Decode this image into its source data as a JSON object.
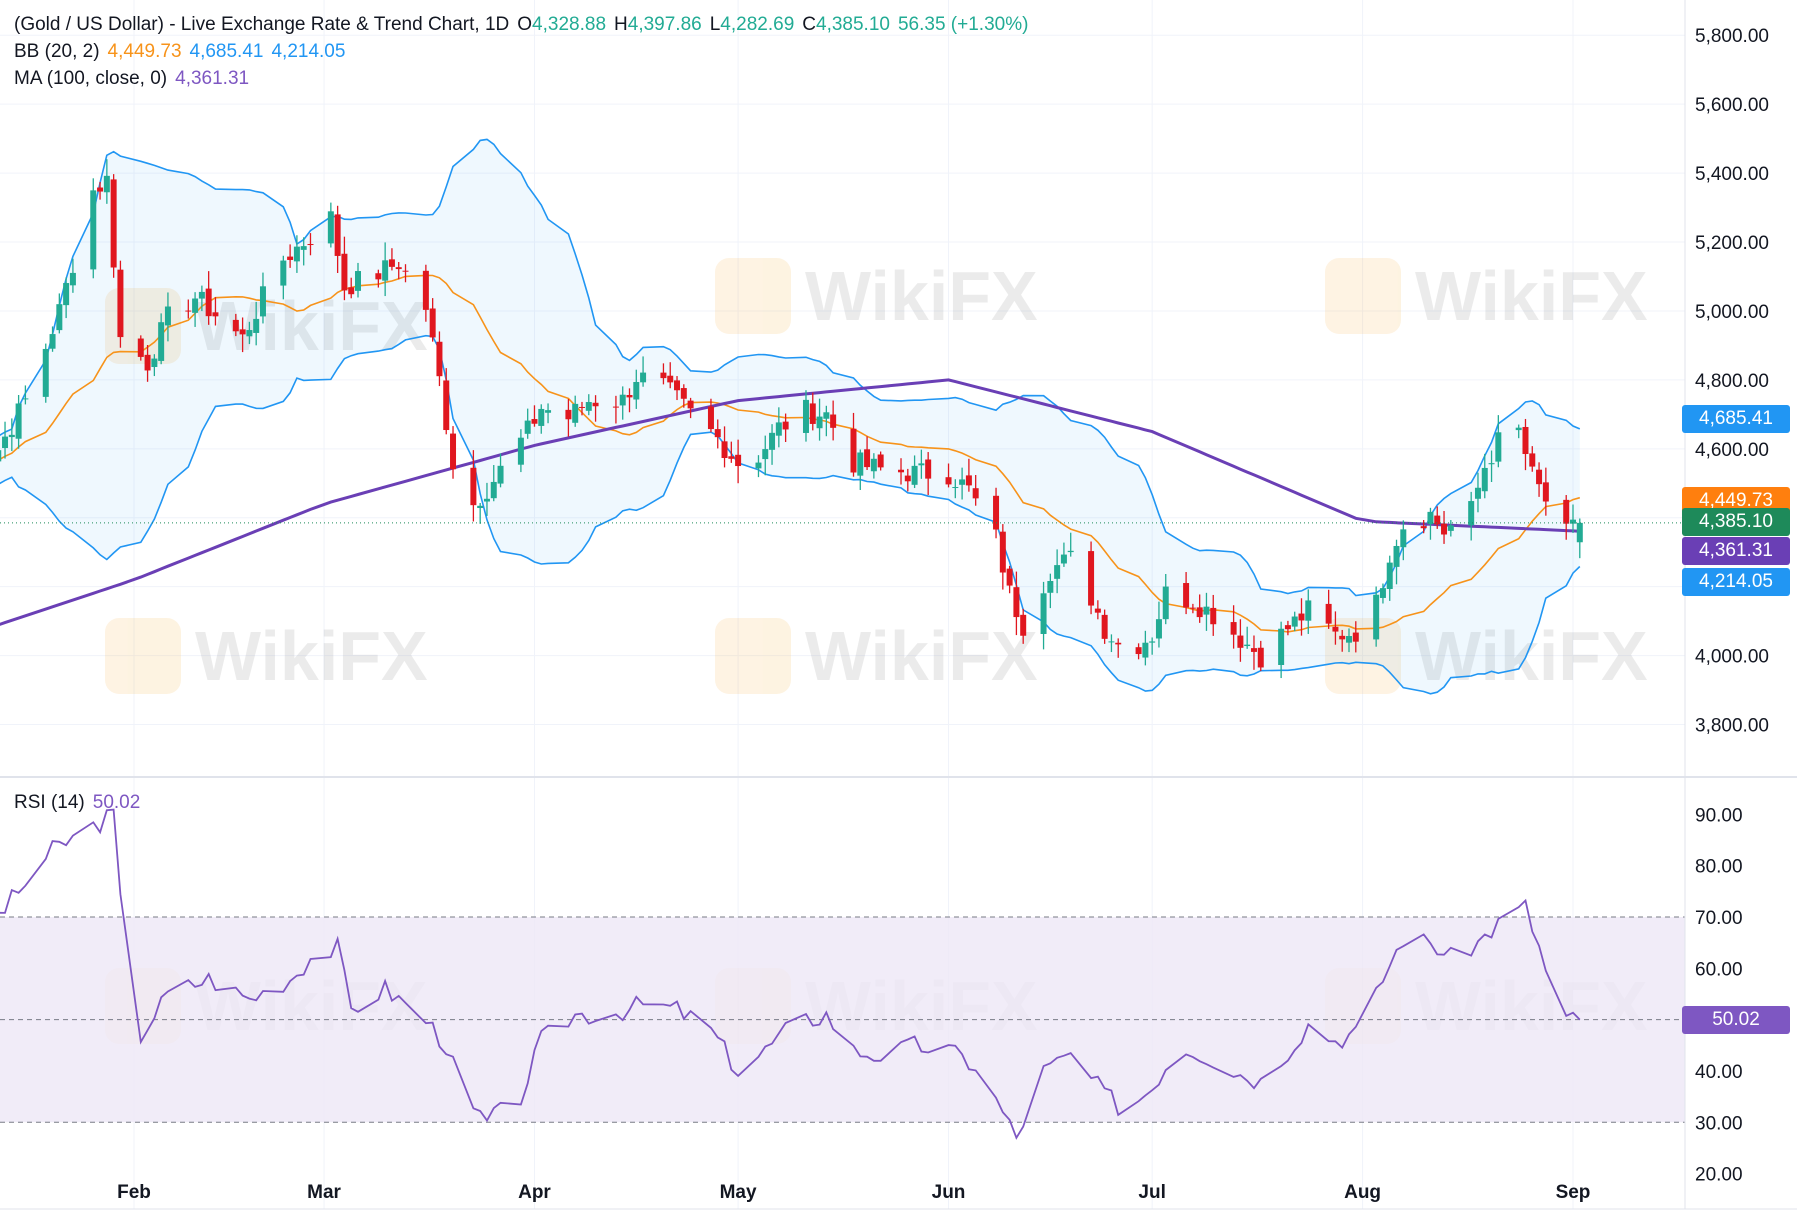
{
  "legend": {
    "symbol": "(Gold / US Dollar) - Live Exchange Rate & Trend Chart, 1D",
    "o_label": "O",
    "o_value": "4,328.88",
    "h_label": "H",
    "h_value": "4,397.86",
    "l_label": "L",
    "l_value": "4,282.69",
    "c_label": "C",
    "c_value": "4,385.10",
    "change": "56.35 (+1.30%)",
    "bb_label": "BB (20, 2)",
    "bb_mid": "4,449.73",
    "bb_upper": "4,685.41",
    "bb_lower": "4,214.05",
    "ma_label": "MA (100, close, 0)",
    "ma_value": "4,361.31",
    "rsi_label": "RSI (14)",
    "rsi_value": "50.02"
  },
  "price_axis": {
    "ticks": [
      "5,800.00",
      "5,600.00",
      "5,400.00",
      "5,200.00",
      "5,000.00",
      "4,800.00",
      "4,600.00",
      "4,000.00",
      "3,800.00"
    ],
    "tags": [
      {
        "text": "4,685.41",
        "color": "#2196f3"
      },
      {
        "text": "4,449.73",
        "color": "#ff7f0e"
      },
      {
        "text": "4,385.10",
        "color": "#1e8a5a"
      },
      {
        "text": "4,361.31",
        "color": "#6a3fb5"
      },
      {
        "text": "4,214.05",
        "color": "#2196f3"
      }
    ]
  },
  "rsi_axis": {
    "ticks": [
      "90.00",
      "80.00",
      "70.00",
      "60.00",
      "40.00",
      "30.00",
      "20.00"
    ],
    "tag": {
      "text": "50.02",
      "color": "#7e57c2"
    }
  },
  "time_axis": {
    "labels": [
      "Feb",
      "Mar",
      "Apr",
      "May",
      "Jun",
      "Jul",
      "Aug",
      "Sep"
    ]
  },
  "watermark": "WikiFX",
  "colors": {
    "up": "#22ab94",
    "down": "#e0171f",
    "bb_band": "#2196f3",
    "bb_basis": "#f7931a",
    "ma": "#6a3fb5",
    "rsi": "#7e57c2",
    "rsi_band": "#ede7f6"
  },
  "chart_data": {
    "type": "candlestick",
    "title": "(Gold / US Dollar) - Live Exchange Rate & Trend Chart, 1D",
    "price_range": [
      3700,
      5850
    ],
    "rsi_range": [
      17,
      93
    ],
    "rsi_levels": [
      70,
      50,
      30
    ],
    "period": "1D",
    "price_anchors": [
      [
        "Jan 6",
        4560
      ],
      [
        "Jan 12",
        4600
      ],
      [
        "Jan 16",
        4740
      ],
      [
        "Jan 21",
        5000
      ],
      [
        "Jan 26",
        5350
      ],
      [
        "Jan 28",
        5380
      ],
      [
        "Jan 30",
        4920
      ],
      [
        "Feb 3",
        4850
      ],
      [
        "Feb 6",
        4980
      ],
      [
        "Feb 10",
        5040
      ],
      [
        "Feb 13",
        4990
      ],
      [
        "Feb 17",
        4920
      ],
      [
        "Feb 19",
        5000
      ],
      [
        "Feb 23",
        5150
      ],
      [
        "Feb 26",
        5200
      ],
      [
        "Mar 2",
        5270
      ],
      [
        "Mar 4",
        5070
      ],
      [
        "Mar 9",
        5110
      ],
      [
        "Mar 12",
        5140
      ],
      [
        "Mar 16",
        5010
      ],
      [
        "Mar 18",
        4800
      ],
      [
        "Mar 20",
        4560
      ],
      [
        "Mar 23",
        4440
      ],
      [
        "Mar 26",
        4510
      ],
      [
        "Mar 31",
        4650
      ],
      [
        "Apr 2",
        4720
      ],
      [
        "Apr 6",
        4690
      ],
      [
        "Apr 9",
        4740
      ],
      [
        "Apr 14",
        4740
      ],
      [
        "Apr 16",
        4810
      ],
      [
        "Apr 20",
        4780
      ],
      [
        "Apr 24",
        4700
      ],
      [
        "Apr 28",
        4630
      ],
      [
        "May 1",
        4560
      ],
      [
        "May 4",
        4580
      ],
      [
        "May 7",
        4660
      ],
      [
        "May 11",
        4710
      ],
      [
        "May 14",
        4700
      ],
      [
        "May 18",
        4560
      ],
      [
        "May 22",
        4540
      ],
      [
        "May 27",
        4530
      ],
      [
        "Jun 1",
        4530
      ],
      [
        "Jun 4",
        4480
      ],
      [
        "Jun 8",
        4340
      ],
      [
        "Jun 10",
        4180
      ],
      [
        "Jun 12",
        4090
      ],
      [
        "Jun 16",
        4250
      ],
      [
        "Jun 19",
        4280
      ],
      [
        "Jun 22",
        4170
      ],
      [
        "Jun 24",
        4080
      ],
      [
        "Jun 27",
        4010
      ],
      [
        "Jul 1",
        4060
      ],
      [
        "Jul 3",
        4180
      ],
      [
        "Jul 7",
        4160
      ],
      [
        "Jul 10",
        4120
      ],
      [
        "Jul 14",
        4050
      ],
      [
        "Jul 17",
        4000
      ],
      [
        "Jul 21",
        4080
      ],
      [
        "Jul 24",
        4130
      ],
      [
        "Jul 28",
        4060
      ],
      [
        "Jul 31",
        4070
      ],
      [
        "Aug 3",
        4150
      ],
      [
        "Aug 5",
        4300
      ],
      [
        "Aug 7",
        4380
      ],
      [
        "Aug 11",
        4410
      ],
      [
        "Aug 13",
        4360
      ],
      [
        "Aug 17",
        4420
      ],
      [
        "Aug 19",
        4550
      ],
      [
        "Aug 21",
        4620
      ],
      [
        "Aug 24",
        4650
      ],
      [
        "Aug 26",
        4520
      ],
      [
        "Aug 28",
        4450
      ],
      [
        "Aug 31",
        4350
      ],
      [
        "Sep 2",
        4385
      ]
    ],
    "ma100_anchors": [
      [
        "Jan 6",
        4050
      ],
      [
        "Feb 1",
        4220
      ],
      [
        "Mar 1",
        4440
      ],
      [
        "Apr 1",
        4610
      ],
      [
        "May 1",
        4740
      ],
      [
        "Jun 1",
        4800
      ],
      [
        "Jul 1",
        4650
      ],
      [
        "Aug 1",
        4390
      ],
      [
        "Sep 2",
        4361
      ]
    ],
    "rsi_anchors": [
      [
        "Jan 6",
        71
      ],
      [
        "Jan 10",
        67
      ],
      [
        "Jan 20",
        83
      ],
      [
        "Jan 29",
        90
      ],
      [
        "Jan 31",
        56
      ],
      [
        "Feb 2",
        47
      ],
      [
        "Feb 6",
        55
      ],
      [
        "Feb 12",
        58
      ],
      [
        "Feb 18",
        54
      ],
      [
        "Feb 24",
        58
      ],
      [
        "Feb 27",
        62
      ],
      [
        "Mar 3",
        64
      ],
      [
        "Mar 5",
        52
      ],
      [
        "Mar 10",
        56
      ],
      [
        "Mar 16",
        50
      ],
      [
        "Mar 19",
        45
      ],
      [
        "Mar 22",
        33
      ],
      [
        "Mar 25",
        30
      ],
      [
        "Mar 30",
        35
      ],
      [
        "Apr 2",
        46
      ],
      [
        "Apr 7",
        51
      ],
      [
        "Apr 12",
        51
      ],
      [
        "Apr 17",
        53
      ],
      [
        "Apr 22",
        52
      ],
      [
        "Apr 27",
        48
      ],
      [
        "May 1",
        40
      ],
      [
        "May 5",
        44
      ],
      [
        "May 9",
        49
      ],
      [
        "May 14",
        51
      ],
      [
        "May 18",
        44
      ],
      [
        "May 22",
        43
      ],
      [
        "May 27",
        45
      ],
      [
        "Jun 1",
        44
      ],
      [
        "Jun 5",
        41
      ],
      [
        "Jun 9",
        32
      ],
      [
        "Jun 11",
        27
      ],
      [
        "Jun 15",
        40
      ],
      [
        "Jun 19",
        43
      ],
      [
        "Jun 23",
        37
      ],
      [
        "Jun 27",
        32
      ],
      [
        "Jul 1",
        37
      ],
      [
        "Jul 5",
        45
      ],
      [
        "Jul 9",
        43
      ],
      [
        "Jul 13",
        40
      ],
      [
        "Jul 17",
        38
      ],
      [
        "Jul 21",
        44
      ],
      [
        "Jul 24",
        49
      ],
      [
        "Jul 28",
        46
      ],
      [
        "Aug 1",
        48
      ],
      [
        "Aug 4",
        58
      ],
      [
        "Aug 7",
        66
      ],
      [
        "Aug 11",
        65
      ],
      [
        "Aug 14",
        62
      ],
      [
        "Aug 18",
        65
      ],
      [
        "Aug 22",
        70
      ],
      [
        "Aug 25",
        72
      ],
      [
        "Aug 27",
        64
      ],
      [
        "Aug 29",
        55
      ],
      [
        "Aug 31",
        50
      ],
      [
        "Sep 2",
        50
      ]
    ]
  }
}
